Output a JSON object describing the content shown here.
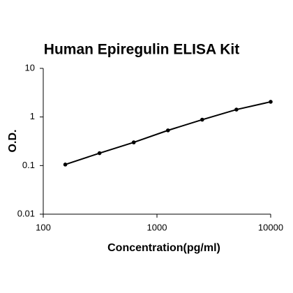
{
  "chart_data": {
    "type": "scatter",
    "title": "Human Epiregulin ELISA Kit",
    "x_label": "Concentration(pg/ml)",
    "y_label": "O.D.",
    "x": [
      156.25,
      312.5,
      625,
      1250,
      2500,
      5000,
      10000
    ],
    "series": [
      {
        "color": "#000000",
        "values": [
          0.105,
          0.18,
          0.3,
          0.53,
          0.88,
          1.42,
          2.05
        ]
      }
    ],
    "xlim": [
      100,
      10000
    ],
    "ylim": [
      0.01,
      10
    ],
    "xticks": [
      100,
      1000,
      10000
    ],
    "yticks": [
      0.01,
      0.1,
      1,
      10
    ],
    "xscale": "log",
    "yscale": "log",
    "grid": false
  }
}
